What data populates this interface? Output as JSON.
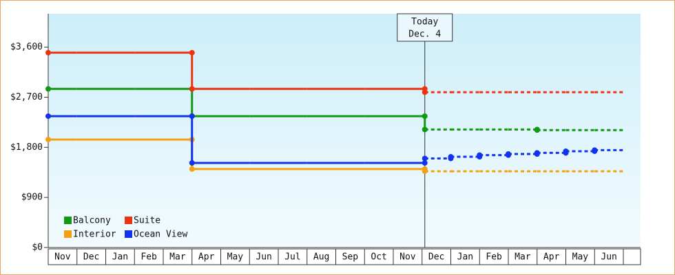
{
  "chart_data": {
    "type": "step-line",
    "annotation": [
      "Today",
      "Dec. 4"
    ],
    "categories": [
      "Nov",
      "Dec",
      "Jan",
      "Feb",
      "Mar",
      "Apr",
      "May",
      "Jun",
      "Jul",
      "Aug",
      "Sep",
      "Oct",
      "Nov",
      "Dec",
      "Jan",
      "Feb",
      "Mar",
      "Apr",
      "May",
      "Jun"
    ],
    "ylim": [
      0,
      4200
    ],
    "yticks": [
      {
        "value": 0,
        "label": "$0"
      },
      {
        "value": 900,
        "label": "$900"
      },
      {
        "value": 1800,
        "label": "$1,800"
      },
      {
        "value": 2700,
        "label": "$2,700"
      },
      {
        "value": 3600,
        "label": "$3,600"
      }
    ],
    "series": [
      {
        "name": "Balcony",
        "color": "#119911",
        "values": [
          2850,
          2850,
          2850,
          2850,
          2850,
          2360,
          2360,
          2360,
          2360,
          2360,
          2360,
          2360,
          2360,
          null,
          null,
          null,
          null,
          null,
          null,
          null
        ],
        "forecast_values": [
          null,
          null,
          null,
          null,
          null,
          null,
          null,
          null,
          null,
          null,
          null,
          null,
          null,
          2120,
          2120,
          2120,
          2120,
          2110,
          2110,
          2110
        ]
      },
      {
        "name": "Suite",
        "color": "#ee3311",
        "values": [
          3500,
          3500,
          3500,
          3500,
          3500,
          2850,
          2850,
          2850,
          2850,
          2850,
          2850,
          2850,
          2850,
          null,
          null,
          null,
          null,
          null,
          null,
          null
        ],
        "forecast_values": [
          null,
          null,
          null,
          null,
          null,
          null,
          null,
          null,
          null,
          null,
          null,
          null,
          null,
          2790,
          2790,
          2790,
          2790,
          2790,
          2790,
          2790
        ]
      },
      {
        "name": "Interior",
        "color": "#f5a010",
        "values": [
          1940,
          1940,
          1940,
          1940,
          1940,
          1410,
          1410,
          1410,
          1410,
          1410,
          1410,
          1410,
          1410,
          null,
          null,
          null,
          null,
          null,
          null,
          null
        ],
        "forecast_values": [
          null,
          null,
          null,
          null,
          null,
          null,
          null,
          null,
          null,
          null,
          null,
          null,
          null,
          1370,
          1370,
          1370,
          1370,
          1370,
          1370,
          1370
        ]
      },
      {
        "name": "Ocean View",
        "color": "#1133ee",
        "values": [
          2360,
          2360,
          2360,
          2360,
          2360,
          1520,
          1520,
          1520,
          1520,
          1520,
          1520,
          1520,
          1520,
          null,
          null,
          null,
          null,
          null,
          null,
          null
        ],
        "forecast_values": [
          null,
          null,
          null,
          null,
          null,
          null,
          null,
          null,
          null,
          null,
          null,
          null,
          null,
          1600,
          1630,
          1660,
          1680,
          1700,
          1730,
          1750
        ]
      }
    ]
  }
}
